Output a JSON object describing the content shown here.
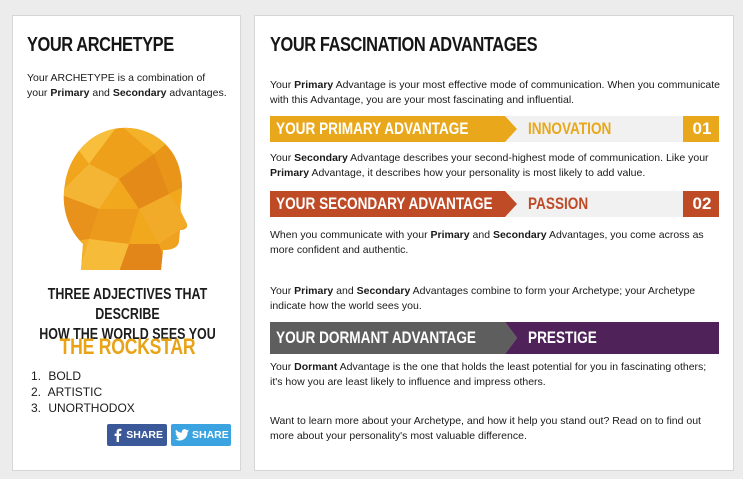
{
  "left": {
    "title": "YOUR ARCHETYPE",
    "intro": {
      "part1": "Your ARCHETYPE is a combination of your ",
      "primary": "Primary",
      "and": " and ",
      "secondary": "Secondary",
      "part2": " advantages."
    },
    "adjectives_title_line1": "THREE ADJECTIVES THAT DESCRIBE",
    "adjectives_title_line2": "HOW THE WORLD SEES YOU",
    "archetype_name": "THE ROCKSTAR",
    "adjectives": [
      {
        "num": "1.",
        "text": "BOLD"
      },
      {
        "num": "2.",
        "text": "ARTISTIC"
      },
      {
        "num": "3.",
        "text": "UNORTHODOX"
      }
    ],
    "share": {
      "facebook": "SHARE",
      "twitter": "SHARE",
      "facebook_icon": "facebook-icon",
      "twitter_icon": "twitter-icon"
    }
  },
  "right": {
    "title": "YOUR FASCINATION ADVANTAGES",
    "p1": {
      "a": "Your ",
      "b": "Primary",
      "c": " Advantage is your most effective mode of communication. When you communicate with this Advantage, you are your most fascinating and influential."
    },
    "primary_bar": {
      "label": "YOUR PRIMARY ADVANTAGE",
      "value": "INNOVATION",
      "rank": "01",
      "color": "#e9a81b",
      "value_color": "#e9a81b"
    },
    "p2": {
      "a": "Your ",
      "b": "Secondary",
      "c": " Advantage describes your second-highest mode of communication. Like your ",
      "d": "Primary",
      "e": " Advantage, it describes how your personality is most likely to add value."
    },
    "secondary_bar": {
      "label": "YOUR SECONDARY ADVANTAGE",
      "value": "PASSION",
      "rank": "02",
      "color": "#be4a26",
      "value_color": "#be4a26"
    },
    "p3": {
      "a": "When you communicate with your ",
      "b": "Primary",
      "c": " and ",
      "d": "Secondary",
      "e": " Advantages, you come across as more confident and authentic."
    },
    "p4": {
      "a": "Your ",
      "b": "Primary",
      "c": " and ",
      "d": "Secondary",
      "e": " Advantages combine to form your Archetype; your Archetype indicate how the world sees you."
    },
    "dormant_bar": {
      "label": "YOUR DORMANT ADVANTAGE",
      "value": "PRESTIGE",
      "color": "#5e5e5e",
      "value_bg": "#4f2359"
    },
    "p5": {
      "a": "Your ",
      "b": "Dormant",
      "c": " Advantage is the one that holds the least potential for you in fascinating others; it's how you are least likely to influence and impress others."
    },
    "p6": "Want to learn more about your Archetype, and how it help you stand out? Read on to find out more about your personality's most valuable difference."
  }
}
